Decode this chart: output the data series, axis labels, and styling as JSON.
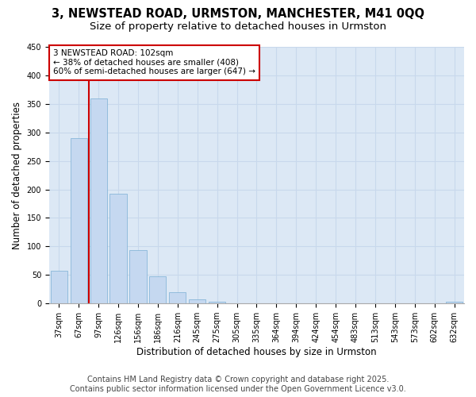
{
  "title_line1": "3, NEWSTEAD ROAD, URMSTON, MANCHESTER, M41 0QQ",
  "title_line2": "Size of property relative to detached houses in Urmston",
  "xlabel": "Distribution of detached houses by size in Urmston",
  "ylabel": "Number of detached properties",
  "categories": [
    "37sqm",
    "67sqm",
    "97sqm",
    "126sqm",
    "156sqm",
    "186sqm",
    "216sqm",
    "245sqm",
    "275sqm",
    "305sqm",
    "335sqm",
    "364sqm",
    "394sqm",
    "424sqm",
    "454sqm",
    "483sqm",
    "513sqm",
    "543sqm",
    "573sqm",
    "602sqm",
    "632sqm"
  ],
  "values": [
    57,
    290,
    360,
    193,
    93,
    48,
    20,
    7,
    3,
    0,
    0,
    0,
    0,
    0,
    0,
    0,
    0,
    0,
    0,
    0,
    3
  ],
  "bar_color": "#c5d8f0",
  "bar_edge_color": "#7bafd4",
  "grid_color": "#c8d8ec",
  "plot_bg_color": "#dce8f5",
  "fig_bg_color": "#ffffff",
  "vline_x_index": 2,
  "vline_color": "#cc0000",
  "annotation_text": "3 NEWSTEAD ROAD: 102sqm\n← 38% of detached houses are smaller (408)\n60% of semi-detached houses are larger (647) →",
  "annotation_box_color": "#ffffff",
  "annotation_box_edge": "#cc0000",
  "ylim": [
    0,
    450
  ],
  "yticks": [
    0,
    50,
    100,
    150,
    200,
    250,
    300,
    350,
    400,
    450
  ],
  "footer_line1": "Contains HM Land Registry data © Crown copyright and database right 2025.",
  "footer_line2": "Contains public sector information licensed under the Open Government Licence v3.0.",
  "title_fontsize": 10.5,
  "subtitle_fontsize": 9.5,
  "tick_fontsize": 7,
  "label_fontsize": 8.5,
  "footer_fontsize": 7,
  "ann_fontsize": 7.5
}
